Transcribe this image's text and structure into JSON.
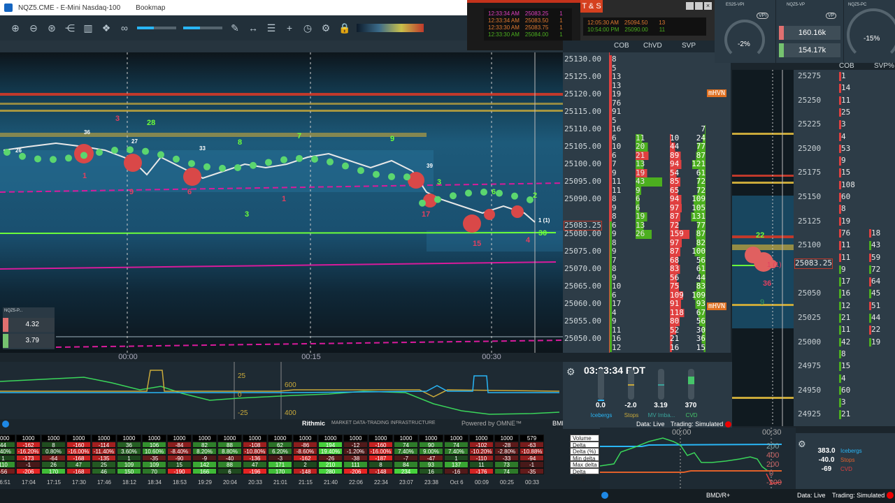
{
  "window": {
    "title": "NQZ5.CME - E-Mini Nasdaq-100",
    "app": "Bookmap"
  },
  "toolbar": {
    "icons": [
      "zoom-in-icon",
      "zoom-out-icon",
      "zoom-fit-icon",
      "share-icon",
      "chart-settings-icon",
      "indicators-icon",
      "link-icon",
      "brightness-slider",
      "contrast-slider",
      "pencil-icon",
      "measure-icon",
      "comment-icon",
      "crosshair-icon",
      "timer-icon",
      "settings-icon",
      "lock-icon",
      "colormap-dropdown"
    ]
  },
  "colors": {
    "bid": "#4caf1f",
    "ask": "#e04040",
    "accent": "#29b6f6",
    "magenta": "#d81b9b",
    "mhvn": "#e07020"
  },
  "time_axis": [
    "00:00",
    "00:15",
    "00:30"
  ],
  "indicator": {
    "labels_left": [
      "25",
      "0",
      "-25"
    ],
    "labels_right": [
      "600",
      "400"
    ]
  },
  "mini_widget": {
    "title": "NQZ5-P...",
    "values": [
      "4.32",
      "3.79"
    ]
  },
  "chart_markers": [
    {
      "t": "3",
      "k": "s"
    },
    {
      "t": "28",
      "k": "b"
    },
    {
      "t": "36",
      "k": "w"
    },
    {
      "t": "27",
      "k": "w"
    },
    {
      "t": "26",
      "k": "w"
    },
    {
      "t": "33",
      "k": "w"
    },
    {
      "t": "8",
      "k": "b"
    },
    {
      "t": "7",
      "k": "b"
    },
    {
      "t": "9",
      "k": "b"
    },
    {
      "t": "1",
      "k": "s"
    },
    {
      "t": "9",
      "k": "s"
    },
    {
      "t": "6",
      "k": "s"
    },
    {
      "t": "1",
      "k": "s"
    },
    {
      "t": "3",
      "k": "b"
    },
    {
      "t": "39",
      "k": "w"
    },
    {
      "t": "3",
      "k": "b"
    },
    {
      "t": "17",
      "k": "s"
    },
    {
      "t": "15",
      "k": "s"
    },
    {
      "t": "6",
      "k": "b"
    },
    {
      "t": "2",
      "k": "b"
    },
    {
      "t": "4",
      "k": "s"
    },
    {
      "t": "30",
      "k": "b"
    },
    {
      "t": "1 (1)",
      "k": "w"
    }
  ],
  "ts": {
    "title": "T & S",
    "left": [
      {
        "time": "12:33:34 AM",
        "price": "25083.25",
        "size": "1",
        "c": "#e040c0"
      },
      {
        "time": "12:33:34 AM",
        "price": "25083.50",
        "size": "1",
        "c": "#e07a30"
      },
      {
        "time": "12:33:30 AM",
        "price": "25083.75",
        "size": "1",
        "c": "#e07a30"
      },
      {
        "time": "12:33:30 AM",
        "price": "25084.00",
        "size": "1",
        "c": "#4caf1f"
      }
    ],
    "right": [
      {
        "time": "12:05:30 AM",
        "price": "25094.50",
        "size": "13",
        "c": "#e07a30"
      },
      {
        "time": "10:54:00 PM",
        "price": "25090.00",
        "size": "11",
        "c": "#4caf1f"
      }
    ]
  },
  "ladder1": {
    "headers": [
      "COB",
      "ChVD",
      "SVP"
    ],
    "current_price": "25083.25",
    "current_row": 19,
    "mhvn": "mHVN",
    "rows": [
      [
        "25130.00",
        "8",
        "",
        "",
        ""
      ],
      [
        "",
        "5",
        "",
        "",
        ""
      ],
      [
        "25125.00",
        "13",
        "",
        "",
        ""
      ],
      [
        "",
        "13",
        "",
        "",
        ""
      ],
      [
        "25120.00",
        "19",
        "",
        "",
        ""
      ],
      [
        "",
        "76",
        "",
        "",
        ""
      ],
      [
        "25115.00",
        "91",
        "",
        "",
        ""
      ],
      [
        "",
        "5",
        "",
        "",
        ""
      ],
      [
        "25110.00",
        "16",
        "",
        "",
        "7"
      ],
      [
        "",
        "6",
        "11",
        "10",
        "24"
      ],
      [
        "25105.00",
        "10",
        "20",
        "44",
        "77"
      ],
      [
        "",
        "6",
        "21",
        "89",
        "87"
      ],
      [
        "25100.00",
        "7",
        "13",
        "94",
        "121"
      ],
      [
        "",
        "9",
        "19",
        "54",
        "61"
      ],
      [
        "25095.00",
        "11",
        "43",
        "85",
        "72"
      ],
      [
        "",
        "11",
        "9",
        "65",
        "72"
      ],
      [
        "25090.00",
        "8",
        "6",
        "94",
        "109"
      ],
      [
        "",
        "9",
        "6",
        "97",
        "105"
      ],
      [
        "",
        "8",
        "19",
        "87",
        "131"
      ],
      [
        "25083.25",
        "6",
        "13",
        "72",
        "77"
      ],
      [
        "25080.00",
        "9",
        "26",
        "159",
        "87"
      ],
      [
        "",
        "8",
        "",
        "97",
        "82"
      ],
      [
        "25075.00",
        "9",
        "",
        "87",
        "100"
      ],
      [
        "",
        "7",
        "",
        "68",
        "56"
      ],
      [
        "25070.00",
        "8",
        "",
        "83",
        "61"
      ],
      [
        "",
        "9",
        "",
        "56",
        "44"
      ],
      [
        "25065.00",
        "10",
        "",
        "75",
        "83"
      ],
      [
        "",
        "6",
        "",
        "109",
        "109"
      ],
      [
        "25060.00",
        "17",
        "",
        "91",
        "93"
      ],
      [
        "",
        "4",
        "",
        "118",
        "67"
      ],
      [
        "25055.00",
        "9",
        "",
        "80",
        "56"
      ],
      [
        "",
        "11",
        "",
        "52",
        "30"
      ],
      [
        "25050.00",
        "16",
        "",
        "21",
        "36"
      ],
      [
        "",
        "12",
        "",
        "16",
        "15"
      ]
    ]
  },
  "ladder2": {
    "headers": [
      "COB",
      "SVP%"
    ],
    "current_price": "25083.25",
    "marker_buy": "22",
    "marker_sell": "36",
    "marker_buy2": "9",
    "last": "1 (1)",
    "prices": [
      "25275",
      "",
      "25250",
      "",
      "25225",
      "",
      "25200",
      "",
      "25175",
      "",
      "25150",
      "",
      "25125",
      "",
      "25100",
      "",
      "",
      "",
      "25050",
      "",
      "25025",
      "",
      "25000",
      "",
      "24975",
      "",
      "24950",
      "",
      "24925"
    ],
    "cob": [
      "1",
      "14",
      "11",
      "25",
      "3",
      "4",
      "53",
      "9",
      "15",
      "108",
      "60",
      "8",
      "19",
      "76",
      "11",
      "11",
      "9",
      "17",
      "16",
      "12",
      "21",
      "11",
      "42",
      "8",
      "15",
      "4",
      "60",
      "3",
      "21"
    ],
    "svp": [
      "",
      "",
      "",
      "",
      "",
      "",
      "",
      "",
      "",
      "",
      "",
      "",
      "",
      "18",
      "43",
      "59",
      "72",
      "64",
      "45",
      "51",
      "44",
      "22",
      "19",
      "",
      "",
      "",
      "",
      "",
      ""
    ]
  },
  "widgets": [
    {
      "title": "ES25-VPI",
      "badge": "VPI",
      "value": "-2%"
    },
    {
      "title": "NQZ5-VP",
      "badge": "VP",
      "values": [
        "160.16k",
        "154.17k"
      ]
    },
    {
      "title": "NQZ5-PC",
      "value": "-15%"
    }
  ],
  "panel": {
    "clock": "03:33:34 EDT",
    "gauges": [
      {
        "value": "0.0",
        "label": "Icebergs",
        "c": "#29b6f6",
        "level": 0
      },
      {
        "value": "-2.0",
        "label": "Stops",
        "c": "#c9a93a",
        "level": 0.5
      },
      {
        "value": "3.19",
        "label": "MV Imba...",
        "c": "#3aa39a",
        "level": 0.5
      },
      {
        "value": "370",
        "label": "CVD",
        "c": "#46c56a",
        "level": 0.75
      }
    ],
    "data": "Data: Live",
    "trading": "Trading: Simulated"
  },
  "status": {
    "rithmic": "Rithmic",
    "rithmic_tag": "MARKET DATA-TRADING INFRASTRUCTURE",
    "omne": "Powered by OMNE™",
    "bmd": "BMD/R+"
  },
  "br_chart": {
    "times": [
      "00:00",
      "00:30"
    ],
    "labels": [
      "200",
      "400",
      "200",
      "0",
      "-200"
    ]
  },
  "br_info": {
    "values": [
      "383.0",
      "-40.0",
      "-69"
    ],
    "labels": [
      "Icebergs",
      "Stops",
      "CVD"
    ],
    "colors": [
      "#29b6f6",
      "#e0602a",
      "#e04040"
    ]
  },
  "bottom": {
    "bmd": "BMD/R+",
    "data": "Data: Live",
    "trading": "Trading: Simulated"
  },
  "table": {
    "row_labels": [
      "Volume",
      "Delta (Bar)",
      "Delta (%)",
      "Min delta",
      "Max delta",
      "Delta chng"
    ],
    "times": [
      "16:51",
      "17:04",
      "17:15",
      "17:30",
      "17:46",
      "18:12",
      "18:34",
      "18:53",
      "19:29",
      "20:04",
      "20:33",
      "21:01",
      "21:15",
      "21:40",
      "22:06",
      "22:34",
      "23:07",
      "23:38",
      "Oct 6",
      "00:09",
      "00:25",
      "00:33"
    ],
    "rows": [
      [
        "1000",
        "1000",
        "1000",
        "1000",
        "1000",
        "1000",
        "1000",
        "1000",
        "1000",
        "1000",
        "1000",
        "1000",
        "1000",
        "1000",
        "1000",
        "1000",
        "1000",
        "1000",
        "1000",
        "1000",
        "1000",
        "579"
      ],
      [
        "44",
        "-162",
        "8",
        "-160",
        "-114",
        "36",
        "106",
        "-84",
        "82",
        "88",
        "-108",
        "62",
        "-86",
        "194",
        "-12",
        "-160",
        "74",
        "90",
        "74",
        "-102",
        "-28",
        "-63"
      ],
      [
        "4.40%",
        "-16.20%",
        "0.80%",
        "-16.00%",
        "-11.40%",
        "3.60%",
        "10.60%",
        "-8.40%",
        "8.20%",
        "8.80%",
        "-10.80%",
        "6.20%",
        "-8.60%",
        "19.40%",
        "-1.20%",
        "-16.00%",
        "7.40%",
        "9.00%",
        "7.40%",
        "-10.20%",
        "-2.80%",
        "-10.88%"
      ],
      [
        "1",
        "-173",
        "-64",
        "-168",
        "-135",
        "1",
        "-35",
        "-90",
        "-9",
        "-40",
        "-136",
        "-3",
        "-162",
        "-26",
        "-38",
        "-187",
        "-7",
        "-47",
        "1",
        "-110",
        "-33",
        "-94"
      ],
      [
        "110",
        "-1",
        "26",
        "47",
        "25",
        "109",
        "109",
        "15",
        "142",
        "88",
        "47",
        "171",
        "2",
        "210",
        "111",
        "8",
        "84",
        "93",
        "137",
        "11",
        "73",
        "-1"
      ],
      [
        "-56",
        "-206",
        "170",
        "-168",
        "46",
        "150",
        "70",
        "-190",
        "166",
        "6",
        "-196",
        "170",
        "-148",
        "280",
        "-206",
        "-148",
        "234",
        "16",
        "-16",
        "-176",
        "74",
        "-35"
      ]
    ]
  }
}
